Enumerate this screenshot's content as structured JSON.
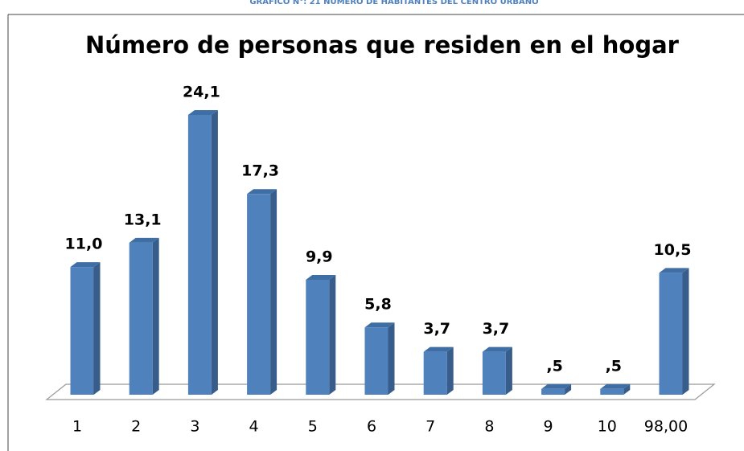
{
  "caption": "GRÁFICO N°: 21 NÚMERO DE HABITANTES DEL CENTRO URBANO",
  "chart_data": {
    "type": "bar3d",
    "title": "Número de personas que residen en el hogar",
    "categories": [
      "1",
      "2",
      "3",
      "4",
      "5",
      "6",
      "7",
      "8",
      "9",
      "10",
      "98,00"
    ],
    "values": [
      11.0,
      13.1,
      24.1,
      17.3,
      9.9,
      5.8,
      3.7,
      3.7,
      0.5,
      0.5,
      10.5
    ],
    "value_labels": [
      "11,0",
      "13,1",
      "24,1",
      "17,3",
      "9,9",
      "5,8",
      "3,7",
      "3,7",
      ",5",
      ",5",
      "10,5"
    ],
    "color": "#4f81bd"
  }
}
